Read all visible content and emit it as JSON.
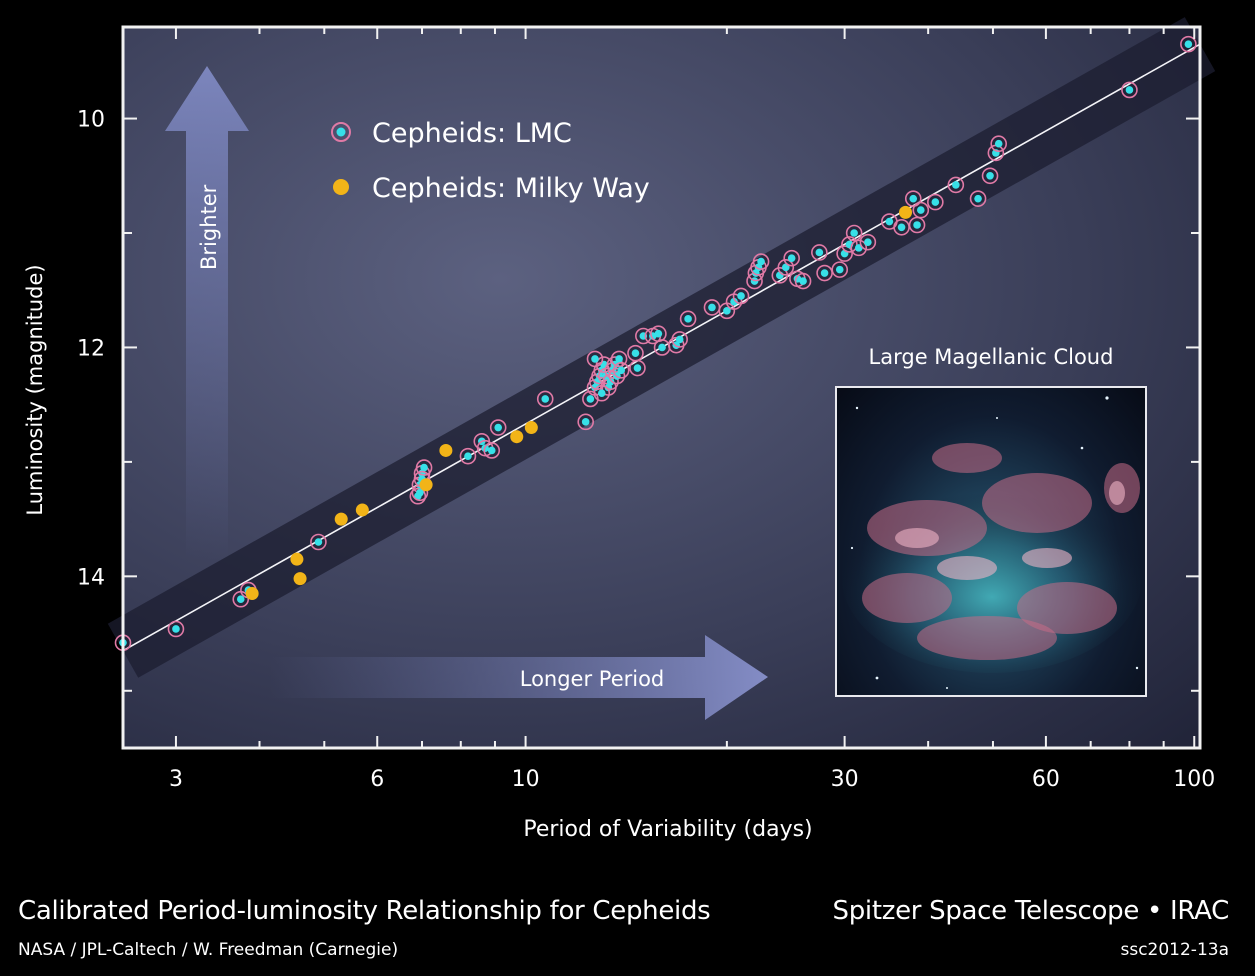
{
  "chart_data": {
    "type": "scatter",
    "xlabel": "Period of Variability (days)",
    "ylabel": "Luminosity (magnitude)",
    "x_scale": "log",
    "xlim": [
      2.5,
      102
    ],
    "ylim": [
      15.5,
      9.2
    ],
    "x_ticks": [
      3,
      6,
      10,
      30,
      60,
      100
    ],
    "y_ticks": [
      10,
      12,
      14
    ],
    "grid": false,
    "legend_position": "top-left",
    "series": [
      {
        "name": "Cepheids: LMC",
        "color": "#37e0e8",
        "points": [
          [
            2.5,
            14.58
          ],
          [
            3.0,
            14.46
          ],
          [
            3.75,
            14.2
          ],
          [
            3.85,
            14.12
          ],
          [
            4.9,
            13.7
          ],
          [
            6.9,
            13.3
          ],
          [
            6.95,
            13.2
          ],
          [
            7.0,
            13.1
          ],
          [
            7.05,
            13.05
          ],
          [
            6.95,
            13.27
          ],
          [
            7.0,
            13.15
          ],
          [
            8.2,
            12.95
          ],
          [
            8.6,
            12.82
          ],
          [
            8.7,
            12.88
          ],
          [
            8.9,
            12.9
          ],
          [
            9.1,
            12.7
          ],
          [
            10.7,
            12.45
          ],
          [
            12.3,
            12.65
          ],
          [
            12.5,
            12.45
          ],
          [
            12.7,
            12.35
          ],
          [
            12.8,
            12.3
          ],
          [
            12.9,
            12.25
          ],
          [
            13.0,
            12.2
          ],
          [
            13.1,
            12.15
          ],
          [
            13.2,
            12.25
          ],
          [
            13.3,
            12.35
          ],
          [
            13.4,
            12.3
          ],
          [
            13.5,
            12.2
          ],
          [
            13.6,
            12.15
          ],
          [
            13.7,
            12.25
          ],
          [
            13.8,
            12.1
          ],
          [
            13.9,
            12.2
          ],
          [
            13.0,
            12.4
          ],
          [
            12.7,
            12.1
          ],
          [
            14.6,
            12.05
          ],
          [
            14.7,
            12.18
          ],
          [
            15.0,
            11.9
          ],
          [
            15.5,
            11.9
          ],
          [
            15.8,
            11.88
          ],
          [
            16.0,
            12.0
          ],
          [
            16.8,
            11.98
          ],
          [
            17.0,
            11.93
          ],
          [
            17.5,
            11.75
          ],
          [
            19.0,
            11.65
          ],
          [
            20.0,
            11.68
          ],
          [
            20.5,
            11.6
          ],
          [
            21.0,
            11.55
          ],
          [
            22.0,
            11.42
          ],
          [
            22.1,
            11.35
          ],
          [
            22.3,
            11.3
          ],
          [
            22.5,
            11.25
          ],
          [
            24.0,
            11.37
          ],
          [
            24.5,
            11.3
          ],
          [
            25.0,
            11.22
          ],
          [
            25.5,
            11.4
          ],
          [
            26.0,
            11.42
          ],
          [
            27.5,
            11.17
          ],
          [
            28.0,
            11.35
          ],
          [
            29.5,
            11.32
          ],
          [
            30.0,
            11.18
          ],
          [
            30.5,
            11.1
          ],
          [
            31.0,
            11.0
          ],
          [
            31.5,
            11.13
          ],
          [
            32.5,
            11.08
          ],
          [
            35.0,
            10.9
          ],
          [
            36.5,
            10.95
          ],
          [
            38.0,
            10.7
          ],
          [
            38.5,
            10.93
          ],
          [
            39.0,
            10.8
          ],
          [
            41.0,
            10.73
          ],
          [
            44.0,
            10.58
          ],
          [
            47.5,
            10.7
          ],
          [
            49.5,
            10.5
          ],
          [
            50.5,
            10.3
          ],
          [
            51.0,
            10.22
          ],
          [
            80.0,
            9.75
          ],
          [
            98.0,
            9.35
          ]
        ]
      },
      {
        "name": "Cepheids: Milky Way",
        "color": "#f2b418",
        "points": [
          [
            3.9,
            14.15
          ],
          [
            4.55,
            13.85
          ],
          [
            4.6,
            14.02
          ],
          [
            5.3,
            13.5
          ],
          [
            5.7,
            13.42
          ],
          [
            7.1,
            13.2
          ],
          [
            7.6,
            12.9
          ],
          [
            9.7,
            12.78
          ],
          [
            10.2,
            12.7
          ],
          [
            37.0,
            10.82
          ]
        ]
      }
    ],
    "fit_line": [
      [
        2.5,
        14.65
      ],
      [
        102,
        9.35
      ]
    ]
  },
  "labels": {
    "brighter": "Brighter",
    "longer_period": "Longer Period",
    "lmc_image_title": "Large Magellanic Cloud"
  },
  "footer": {
    "title": "Calibrated Period-luminosity Relationship for Cepheids",
    "telescope": "Spitzer Space Telescope • IRAC",
    "credit": "NASA / JPL-Caltech / W. Freedman (Carnegie)",
    "image_id": "ssc2012-13a"
  }
}
